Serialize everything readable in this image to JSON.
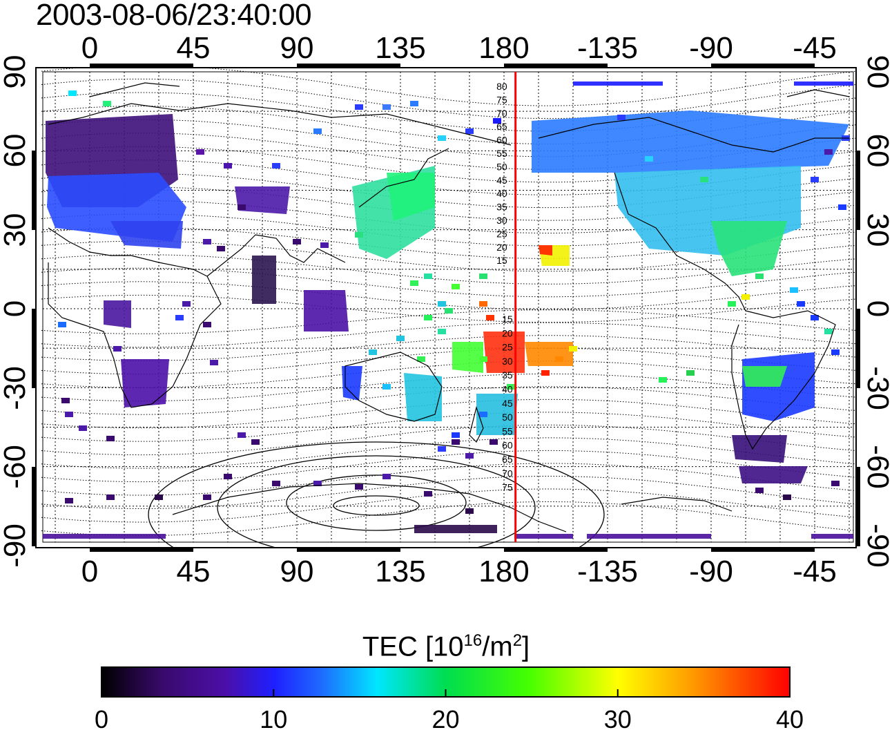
{
  "title": "2003-08-06/23:40:00",
  "map": {
    "top_lon_ticks": [
      "0",
      "45",
      "90",
      "135",
      "180",
      "-135",
      "-90",
      "-45"
    ],
    "bottom_lon_ticks": [
      "0",
      "45",
      "90",
      "135",
      "180",
      "-135",
      "-90",
      "-45"
    ],
    "left_lat_ticks": [
      "90",
      "60",
      "30",
      "0",
      "-30",
      "-60",
      "-90"
    ],
    "right_lat_ticks": [
      "90",
      "60",
      "30",
      "0",
      "-30",
      "-60",
      "-90"
    ],
    "contour_labels_north": [
      "80",
      "75",
      "70",
      "65",
      "60",
      "55",
      "50",
      "45",
      "40",
      "35",
      "30",
      "25",
      "20",
      "15"
    ],
    "contour_labels_south": [
      "15",
      "20",
      "25",
      "30",
      "35",
      "40",
      "45",
      "50",
      "55",
      "60",
      "65",
      "70",
      "75"
    ],
    "terminator_longitude": 185,
    "terminator_color": "#ff0000"
  },
  "colorbar": {
    "title_main": "TEC  [10",
    "title_exp1": "16",
    "title_mid": "/m",
    "title_exp2": "2",
    "title_end": "]",
    "ticks": [
      "0",
      "10",
      "20",
      "30",
      "40"
    ],
    "range": [
      0,
      40
    ],
    "colors": [
      "#000000",
      "#3a0a6e",
      "#4b0fa8",
      "#1f1fff",
      "#1e6bff",
      "#00e0ff",
      "#00dd50",
      "#44ff00",
      "#ffff00",
      "#ff9900",
      "#ff1a00",
      "#ff0000"
    ]
  }
}
